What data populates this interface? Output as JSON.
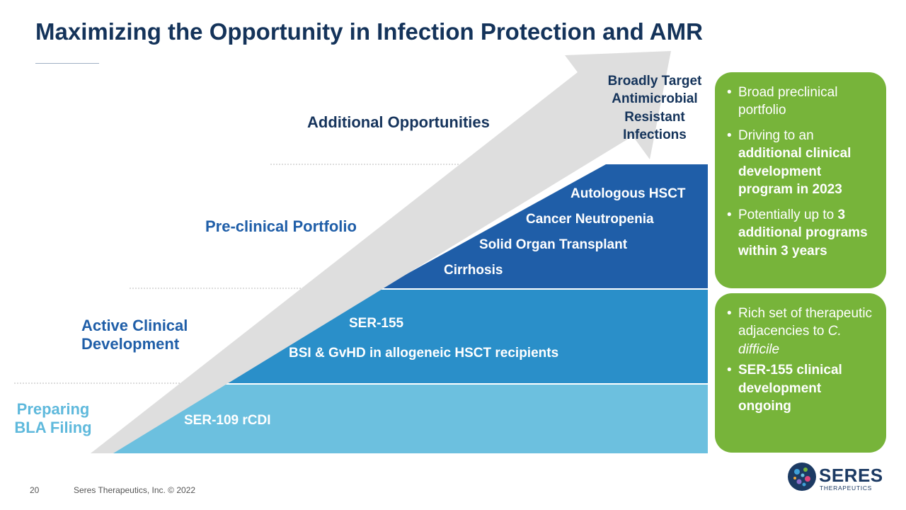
{
  "title": "Maximizing the Opportunity in Infection Protection and AMR",
  "levels": {
    "preparing": "Preparing BLA Filing",
    "active": "Active Clinical Development",
    "preclinical": "Pre-clinical Portfolio",
    "additional": "Additional Opportunities"
  },
  "bars": {
    "bottom": [
      "SER-109 rCDI"
    ],
    "middle": [
      "SER-155",
      "BSI & GvHD in allogeneic HSCT recipients"
    ],
    "top": [
      "Autologous HSCT",
      "Cancer Neutropenia",
      "Solid Organ Transplant",
      "Cirrhosis"
    ]
  },
  "arrow_text": "Broadly Target Antimicrobial Resistant Infections",
  "box_top": {
    "b1": "Broad preclinical portfolio",
    "b2_pre": "Driving to an ",
    "b2_bold": "additional clinical development program in 2023",
    "b3_pre": "Potentially up to ",
    "b3_bold": "3 additional programs within 3 years"
  },
  "box_bottom": {
    "b1_pre": "Rich set of therapeutic adjacencies to ",
    "b1_italic": "C. difficile",
    "b2_bold": "SER-155 clinical development ongoing"
  },
  "footer": {
    "page": "20",
    "copyright": "Seres Therapeutics, Inc. © 2022"
  },
  "logo": {
    "name": "SERES",
    "sub": "THERAPEUTICS"
  },
  "colors": {
    "navy": "#14335a",
    "light_blue": "#6cc0df",
    "mid_blue": "#2a8fc9",
    "dark_blue": "#1f5ea8",
    "green": "#77b43a",
    "arrow": "#dedede"
  }
}
